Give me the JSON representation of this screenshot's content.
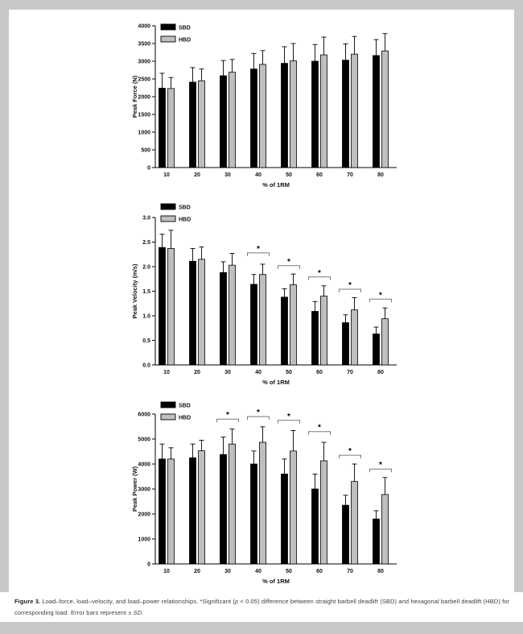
{
  "page": {
    "background_color": "#c8c8c8",
    "panel_color": "#ffffff"
  },
  "caption": {
    "label": "Figure 3.",
    "before_p": " Load–force, load–velocity, and load–power relationships. *Significant (",
    "p": "p",
    "mid": " < 0.05) difference between straight barbell deadlift (SBD) and hexagonal barbell deadlift (HBD) for corresponding load. Error bars represent ± ",
    "sd": "SD",
    "end": "."
  },
  "colors": {
    "sbd_bar": "#000000",
    "hbd_bar": "#bfbfbf",
    "bar_outline": "#000000",
    "error_bar": "#000000",
    "sig_bracket": "#7a7a7a",
    "axis": "#000000",
    "text": "#111111"
  },
  "chart_data": [
    {
      "type": "bar",
      "ylabel": "Peak Force (N)",
      "xlabel": "% of 1RM",
      "categories": [
        "10",
        "20",
        "30",
        "40",
        "50",
        "60",
        "70",
        "80"
      ],
      "series": [
        {
          "name": "SBD",
          "color": "#000000",
          "values": [
            2240,
            2410,
            2590,
            2780,
            2940,
            3000,
            3030,
            3160
          ],
          "sd": [
            420,
            410,
            430,
            440,
            470,
            470,
            460,
            450
          ]
        },
        {
          "name": "HBD",
          "color": "#bfbfbf",
          "values": [
            2230,
            2450,
            2690,
            2910,
            3010,
            3180,
            3200,
            3290
          ],
          "sd": [
            310,
            330,
            360,
            390,
            490,
            500,
            500,
            490
          ]
        }
      ],
      "ylim": [
        0,
        4000
      ],
      "ystep": 500,
      "ydecimals": 0,
      "grid": false,
      "legend_position": "top-left",
      "sig": []
    },
    {
      "type": "bar",
      "ylabel": "Peak Velocity (m/s)",
      "xlabel": "% of 1RM",
      "categories": [
        "10",
        "20",
        "30",
        "40",
        "50",
        "60",
        "70",
        "80"
      ],
      "series": [
        {
          "name": "SBD",
          "color": "#000000",
          "values": [
            2.39,
            2.11,
            1.88,
            1.64,
            1.38,
            1.09,
            0.86,
            0.63
          ],
          "sd": [
            0.27,
            0.26,
            0.22,
            0.2,
            0.17,
            0.2,
            0.16,
            0.14
          ]
        },
        {
          "name": "HBD",
          "color": "#bfbfbf",
          "values": [
            2.37,
            2.15,
            2.03,
            1.84,
            1.63,
            1.4,
            1.12,
            0.94
          ],
          "sd": [
            0.37,
            0.25,
            0.24,
            0.21,
            0.22,
            0.21,
            0.25,
            0.22
          ]
        }
      ],
      "ylim": [
        0,
        3.0
      ],
      "ystep": 0.5,
      "ydecimals": 1,
      "grid": false,
      "legend_position": "top-left",
      "sig": [
        {
          "category": "40",
          "y": 2.28
        },
        {
          "category": "50",
          "y": 2.02
        },
        {
          "category": "60",
          "y": 1.79
        },
        {
          "category": "70",
          "y": 1.54
        },
        {
          "category": "80",
          "y": 1.34
        }
      ]
    },
    {
      "type": "bar",
      "ylabel": "Peak Power (W)",
      "xlabel": "% of 1RM",
      "categories": [
        "10",
        "20",
        "30",
        "40",
        "50",
        "60",
        "70",
        "80"
      ],
      "series": [
        {
          "name": "SBD",
          "color": "#000000",
          "values": [
            4200,
            4250,
            4380,
            4000,
            3600,
            3000,
            2350,
            1800
          ],
          "sd": [
            600,
            550,
            700,
            520,
            600,
            600,
            400,
            330
          ]
        },
        {
          "name": "HBD",
          "color": "#bfbfbf",
          "values": [
            4200,
            4530,
            4800,
            4870,
            4520,
            4130,
            3300,
            2780
          ],
          "sd": [
            450,
            420,
            600,
            620,
            820,
            740,
            700,
            680
          ]
        }
      ],
      "ylim": [
        0,
        6000
      ],
      "ystep": 1000,
      "ydecimals": 0,
      "grid": false,
      "legend_position": "top-left",
      "sig": [
        {
          "category": "30",
          "y": 5800
        },
        {
          "category": "40",
          "y": 5900
        },
        {
          "category": "50",
          "y": 5750
        },
        {
          "category": "60",
          "y": 5300
        },
        {
          "category": "70",
          "y": 4350
        },
        {
          "category": "80",
          "y": 3800
        }
      ]
    }
  ]
}
